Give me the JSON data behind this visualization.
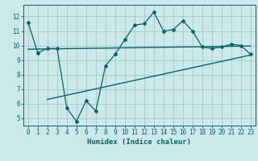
{
  "xlabel": "Humidex (Indice chaleur)",
  "bg_color": "#cce8e8",
  "line_color": "#006666",
  "grid_color": "#99cccc",
  "xlim": [
    -0.5,
    23.5
  ],
  "ylim": [
    4.5,
    12.8
  ],
  "xticks": [
    0,
    1,
    2,
    3,
    4,
    5,
    6,
    7,
    8,
    9,
    10,
    11,
    12,
    13,
    14,
    15,
    16,
    17,
    18,
    19,
    20,
    21,
    22,
    23
  ],
  "yticks": [
    5,
    6,
    7,
    8,
    9,
    10,
    11,
    12
  ],
  "main_y": [
    11.6,
    9.5,
    9.8,
    9.8,
    5.7,
    4.8,
    6.2,
    5.5,
    8.6,
    9.4,
    10.4,
    11.4,
    11.5,
    12.3,
    11.0,
    11.1,
    11.7,
    11.0,
    9.9,
    9.8,
    9.9,
    10.1,
    10.0,
    9.4
  ],
  "line1_x": [
    0,
    23
  ],
  "line1_y": [
    9.75,
    9.97
  ],
  "line2_x": [
    2,
    23
  ],
  "line2_y": [
    6.3,
    9.35
  ]
}
